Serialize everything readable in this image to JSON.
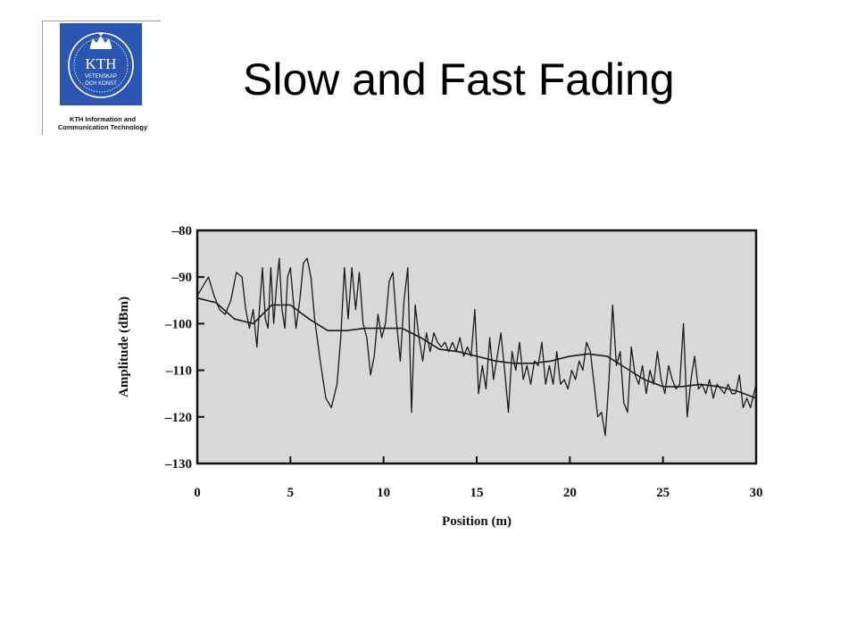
{
  "header": {
    "title": "Slow and Fast Fading",
    "logo": {
      "icon": "kth-crest-icon",
      "wordmark": "KTH",
      "motto_line1": "VETENSKAP",
      "motto_line2": "OCH KONST",
      "caption_line1": "KTH Information and",
      "caption_line2": "Communication Technology",
      "color": "#2a56b0"
    }
  },
  "chart_data": {
    "type": "line",
    "title": "",
    "xlabel": "Position (m)",
    "ylabel": "Amplitude (dBm)",
    "xlim": [
      0,
      30
    ],
    "ylim": [
      -130,
      -80
    ],
    "xticks": [
      0,
      5,
      10,
      15,
      20,
      25,
      30
    ],
    "xtick_labels": [
      "0",
      "5",
      "10",
      "15",
      "20",
      "25",
      "30"
    ],
    "yticks": [
      -80,
      -90,
      -100,
      -110,
      -120,
      -130
    ],
    "ytick_labels": [
      "–80",
      "–90",
      "–100",
      "–110",
      "–120",
      "–130"
    ],
    "grid": false,
    "legend": "none",
    "plot_background": "#d9d9d9",
    "line_color": "#1a1a1a",
    "series": [
      {
        "x": [
          0,
          0.3,
          0.6,
          0.9,
          1.2,
          1.5,
          1.8,
          2.1,
          2.4,
          2.6,
          2.8,
          3.0,
          3.2,
          3.35,
          3.5,
          3.65,
          3.8,
          3.95,
          4.1,
          4.25,
          4.4,
          4.55,
          4.7,
          4.85,
          5.0,
          5.15,
          5.3,
          5.5,
          5.7,
          5.9,
          6.1,
          6.3,
          6.6,
          6.9,
          7.2,
          7.5,
          7.7,
          7.9,
          8.1,
          8.3,
          8.5,
          8.7,
          8.9,
          9.1,
          9.3,
          9.5,
          9.7,
          9.9,
          10.1,
          10.3,
          10.5,
          10.7,
          10.9,
          11.1,
          11.3,
          11.5,
          11.7,
          11.9,
          12.1,
          12.3,
          12.5,
          12.7,
          12.9,
          13.1,
          13.3,
          13.5,
          13.7,
          13.9,
          14.1,
          14.3,
          14.5,
          14.7,
          14.9,
          15.1,
          15.3,
          15.5,
          15.7,
          15.9,
          16.1,
          16.3,
          16.5,
          16.7,
          16.9,
          17.1,
          17.3,
          17.5,
          17.7,
          17.9,
          18.1,
          18.3,
          18.5,
          18.7,
          18.9,
          19.1,
          19.3,
          19.5,
          19.7,
          19.9,
          20.1,
          20.3,
          20.5,
          20.7,
          20.9,
          21.1,
          21.3,
          21.5,
          21.7,
          21.9,
          22.1,
          22.3,
          22.5,
          22.7,
          22.9,
          23.1,
          23.3,
          23.5,
          23.7,
          23.9,
          24.1,
          24.3,
          24.5,
          24.7,
          24.9,
          25.1,
          25.3,
          25.5,
          25.7,
          25.9,
          26.1,
          26.3,
          26.5,
          26.7,
          26.9,
          27.1,
          27.3,
          27.5,
          27.7,
          27.9,
          28.1,
          28.3,
          28.5,
          28.7,
          28.9,
          29.1,
          29.3,
          29.5,
          29.7,
          30.0
        ],
        "y": [
          -94,
          -92,
          -90,
          -94,
          -97,
          -98,
          -95,
          -89,
          -90,
          -97,
          -101,
          -97,
          -105,
          -96,
          -88,
          -99,
          -101,
          -88,
          -100,
          -92,
          -86,
          -97,
          -101,
          -90,
          -88,
          -95,
          -101,
          -95,
          -87,
          -86,
          -90,
          -99,
          -108,
          -116,
          -118,
          -113,
          -103,
          -88,
          -99,
          -88,
          -97,
          -89,
          -100,
          -103,
          -111,
          -107,
          -98,
          -103,
          -100,
          -91,
          -89,
          -100,
          -108,
          -95,
          -88,
          -119,
          -96,
          -103,
          -108,
          -102,
          -106,
          -102,
          -104,
          -105,
          -104,
          -106,
          -104,
          -106,
          -103,
          -107,
          -105,
          -107,
          -97,
          -115,
          -109,
          -114,
          -103,
          -112,
          -107,
          -102,
          -110,
          -119,
          -106,
          -110,
          -104,
          -112,
          -109,
          -113,
          -108,
          -109,
          -104,
          -113,
          -109,
          -113,
          -106,
          -113,
          -112,
          -114,
          -110,
          -112,
          -108,
          -110,
          -104,
          -106,
          -113,
          -120,
          -119,
          -124,
          -112,
          -96,
          -109,
          -106,
          -117,
          -119,
          -105,
          -111,
          -113,
          -109,
          -115,
          -110,
          -113,
          -106,
          -112,
          -115,
          -109,
          -112,
          -114,
          -113,
          -100,
          -120,
          -112,
          -107,
          -114,
          -113,
          -115,
          -112,
          -116,
          -113,
          -114,
          -115,
          -113,
          -115,
          -115,
          -111,
          -118,
          -116,
          -118,
          -113
        ]
      },
      {
        "x": [
          0,
          1,
          2,
          3,
          4,
          5,
          6,
          7,
          8,
          9,
          10,
          11,
          12,
          13,
          14,
          15,
          16,
          17,
          18,
          19,
          20,
          21,
          22,
          23,
          24,
          25,
          26,
          27,
          28,
          29,
          30
        ],
        "y": [
          -94.5,
          -95.5,
          -99,
          -100,
          -96,
          -96,
          -99,
          -101.5,
          -101.5,
          -101,
          -101,
          -101,
          -103,
          -105.5,
          -106,
          -107,
          -108,
          -108.5,
          -108.5,
          -108,
          -107,
          -106.5,
          -107,
          -109.5,
          -112,
          -113.5,
          -113.5,
          -113,
          -113.5,
          -114.5,
          -116
        ]
      }
    ]
  }
}
